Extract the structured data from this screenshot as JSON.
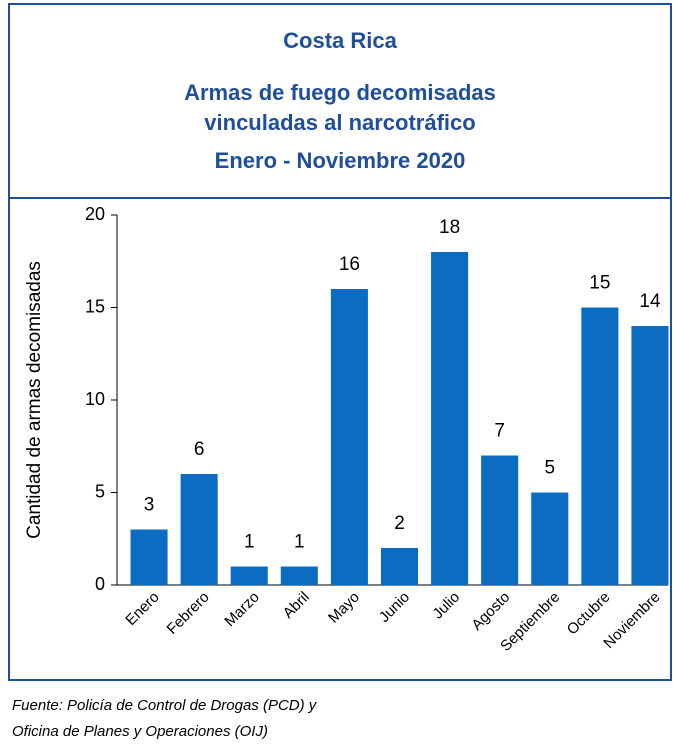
{
  "chart_data": {
    "type": "bar",
    "title": "Costa Rica",
    "subtitle": [
      "Armas de fuego decomisadas",
      "vinculadas al narcotráfico",
      "Enero - Noviembre  2020"
    ],
    "y_label": "Cantidad de armas decomisadas",
    "categories": [
      "Enero",
      "Febrero",
      "Marzo",
      "Abril",
      "Mayo",
      "Junio",
      "Julio",
      "Agosto",
      "Septiembre",
      "Octubre",
      "Noviembre"
    ],
    "values": [
      3,
      6,
      1,
      1,
      16,
      2,
      18,
      7,
      5,
      15,
      14
    ],
    "color": "#0b6cc1",
    "ylim": [
      0,
      20
    ],
    "yticks": [
      0,
      5,
      10,
      15,
      20
    ],
    "grid": false,
    "source": [
      "Fuente: Policía de Control de Drogas (PCD) y",
      "Oficina de Planes y Operaciones (OIJ)"
    ]
  }
}
